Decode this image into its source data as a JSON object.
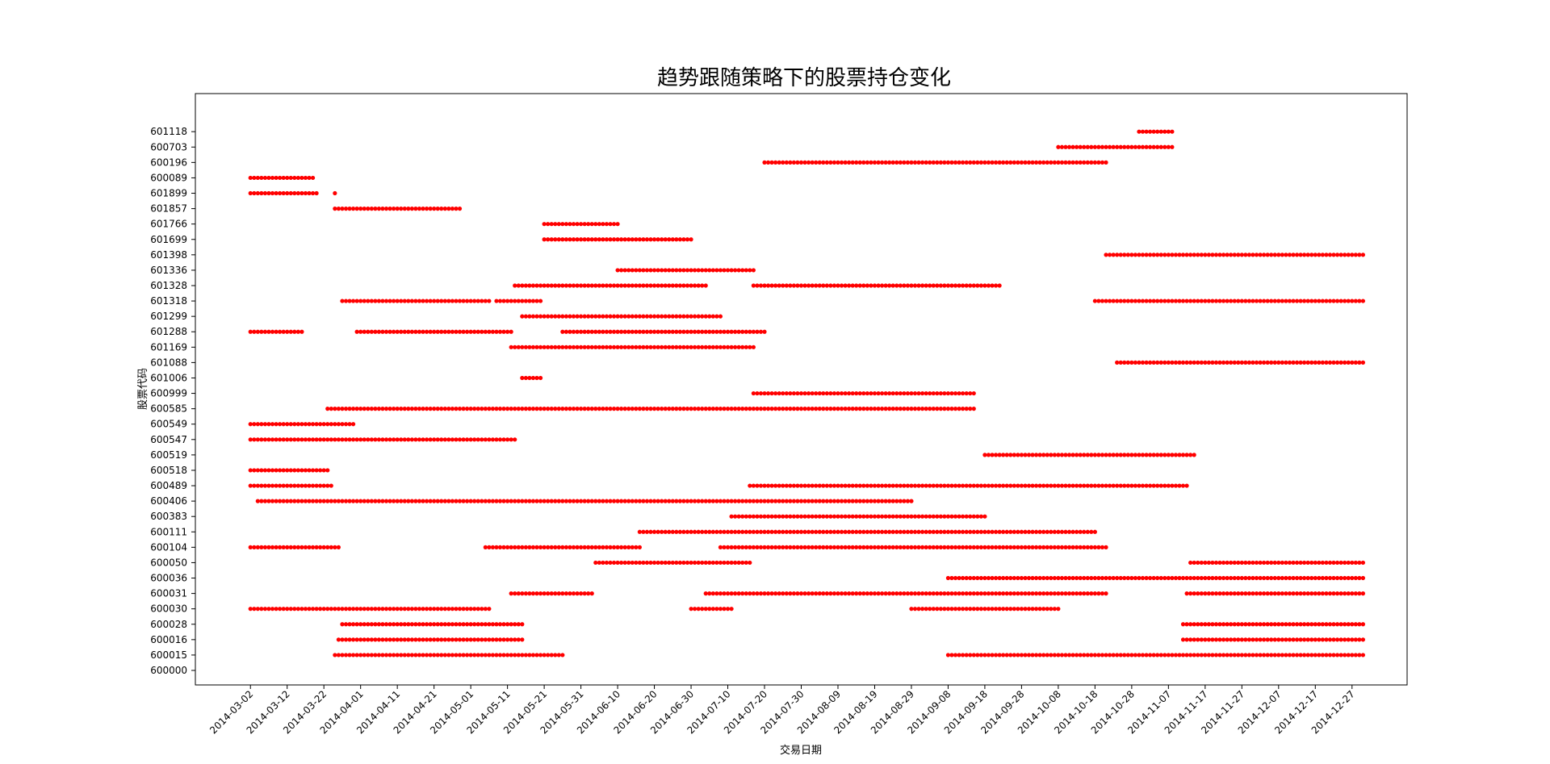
{
  "chart_data": {
    "type": "scatter",
    "title": "趋势跟随策略下的股票持仓变化",
    "xlabel": "交易日期",
    "ylabel": "股票代码",
    "x_ticks": [
      "2014-03-02",
      "2014-03-12",
      "2014-03-22",
      "2014-04-01",
      "2014-04-11",
      "2014-04-21",
      "2014-05-01",
      "2014-05-11",
      "2014-05-21",
      "2014-05-31",
      "2014-06-10",
      "2014-06-20",
      "2014-06-30",
      "2014-07-10",
      "2014-07-20",
      "2014-07-30",
      "2014-08-09",
      "2014-08-19",
      "2014-08-29",
      "2014-09-08",
      "2014-09-18",
      "2014-09-28",
      "2014-10-08",
      "2014-10-18",
      "2014-10-28",
      "2014-11-07",
      "2014-11-17",
      "2014-11-27",
      "2014-12-07",
      "2014-12-17",
      "2014-12-27"
    ],
    "xlim": [
      "2014-02-15",
      "2015-01-11"
    ],
    "y_categories": [
      "600000",
      "600015",
      "600016",
      "600028",
      "600030",
      "600031",
      "600036",
      "600050",
      "600104",
      "600111",
      "600383",
      "600406",
      "600489",
      "600518",
      "600519",
      "600547",
      "600549",
      "600585",
      "600999",
      "601006",
      "601088",
      "601169",
      "601288",
      "601299",
      "601318",
      "601328",
      "601336",
      "601398",
      "601699",
      "601766",
      "601857",
      "601899",
      "600089",
      "600196",
      "600703",
      "601118"
    ],
    "marker": "circle",
    "color": "#ff0000",
    "holding_periods": [
      {
        "stock": "600015",
        "start": "2014-03-25",
        "end": "2014-05-26"
      },
      {
        "stock": "600015",
        "start": "2014-09-08",
        "end": "2014-12-30"
      },
      {
        "stock": "600016",
        "start": "2014-03-26",
        "end": "2014-05-15"
      },
      {
        "stock": "600016",
        "start": "2014-11-11",
        "end": "2014-12-30"
      },
      {
        "stock": "600028",
        "start": "2014-03-27",
        "end": "2014-05-15"
      },
      {
        "stock": "600028",
        "start": "2014-11-11",
        "end": "2014-12-30"
      },
      {
        "stock": "600030",
        "start": "2014-03-02",
        "end": "2014-05-06"
      },
      {
        "stock": "600030",
        "start": "2014-06-30",
        "end": "2014-07-11"
      },
      {
        "stock": "600030",
        "start": "2014-08-29",
        "end": "2014-10-08"
      },
      {
        "stock": "600031",
        "start": "2014-05-12",
        "end": "2014-06-03"
      },
      {
        "stock": "600031",
        "start": "2014-07-04",
        "end": "2014-10-21"
      },
      {
        "stock": "600031",
        "start": "2014-11-12",
        "end": "2014-12-30"
      },
      {
        "stock": "600036",
        "start": "2014-09-08",
        "end": "2014-12-30"
      },
      {
        "stock": "600050",
        "start": "2014-06-04",
        "end": "2014-07-16"
      },
      {
        "stock": "600050",
        "start": "2014-11-13",
        "end": "2014-12-30"
      },
      {
        "stock": "600104",
        "start": "2014-03-02",
        "end": "2014-03-26"
      },
      {
        "stock": "600104",
        "start": "2014-05-05",
        "end": "2014-06-16"
      },
      {
        "stock": "600104",
        "start": "2014-07-08",
        "end": "2014-10-21"
      },
      {
        "stock": "600111",
        "start": "2014-06-16",
        "end": "2014-10-18"
      },
      {
        "stock": "600383",
        "start": "2014-07-11",
        "end": "2014-09-18"
      },
      {
        "stock": "600406",
        "start": "2014-03-04",
        "end": "2014-08-29"
      },
      {
        "stock": "600489",
        "start": "2014-03-02",
        "end": "2014-03-24"
      },
      {
        "stock": "600489",
        "start": "2014-07-16",
        "end": "2014-11-12"
      },
      {
        "stock": "600518",
        "start": "2014-03-02",
        "end": "2014-03-23"
      },
      {
        "stock": "600519",
        "start": "2014-09-18",
        "end": "2014-11-14"
      },
      {
        "stock": "600547",
        "start": "2014-03-02",
        "end": "2014-05-13"
      },
      {
        "stock": "600549",
        "start": "2014-03-02",
        "end": "2014-03-30"
      },
      {
        "stock": "600585",
        "start": "2014-03-23",
        "end": "2014-09-15"
      },
      {
        "stock": "600999",
        "start": "2014-07-17",
        "end": "2014-09-15"
      },
      {
        "stock": "601006",
        "start": "2014-05-15",
        "end": "2014-05-20"
      },
      {
        "stock": "601088",
        "start": "2014-10-24",
        "end": "2014-12-30"
      },
      {
        "stock": "601169",
        "start": "2014-05-12",
        "end": "2014-07-17"
      },
      {
        "stock": "601288",
        "start": "2014-03-02",
        "end": "2014-03-16"
      },
      {
        "stock": "601288",
        "start": "2014-03-31",
        "end": "2014-05-12"
      },
      {
        "stock": "601288",
        "start": "2014-05-26",
        "end": "2014-07-20"
      },
      {
        "stock": "601299",
        "start": "2014-05-15",
        "end": "2014-07-08"
      },
      {
        "stock": "601318",
        "start": "2014-03-27",
        "end": "2014-05-06"
      },
      {
        "stock": "601318",
        "start": "2014-05-08",
        "end": "2014-05-20"
      },
      {
        "stock": "601318",
        "start": "2014-10-18",
        "end": "2014-12-30"
      },
      {
        "stock": "601328",
        "start": "2014-05-13",
        "end": "2014-07-04"
      },
      {
        "stock": "601328",
        "start": "2014-07-17",
        "end": "2014-09-22"
      },
      {
        "stock": "601336",
        "start": "2014-06-10",
        "end": "2014-07-17"
      },
      {
        "stock": "601398",
        "start": "2014-10-21",
        "end": "2014-12-30"
      },
      {
        "stock": "601699",
        "start": "2014-05-21",
        "end": "2014-06-30"
      },
      {
        "stock": "601766",
        "start": "2014-05-21",
        "end": "2014-06-10"
      },
      {
        "stock": "601857",
        "start": "2014-03-25",
        "end": "2014-04-28"
      },
      {
        "stock": "601899",
        "start": "2014-03-02",
        "end": "2014-03-20"
      },
      {
        "stock": "601899",
        "start": "2014-03-25",
        "end": "2014-03-25"
      },
      {
        "stock": "600089",
        "start": "2014-03-02",
        "end": "2014-03-19"
      },
      {
        "stock": "600196",
        "start": "2014-07-20",
        "end": "2014-10-21"
      },
      {
        "stock": "600703",
        "start": "2014-10-08",
        "end": "2014-11-08"
      },
      {
        "stock": "601118",
        "start": "2014-10-30",
        "end": "2014-11-08"
      }
    ]
  }
}
